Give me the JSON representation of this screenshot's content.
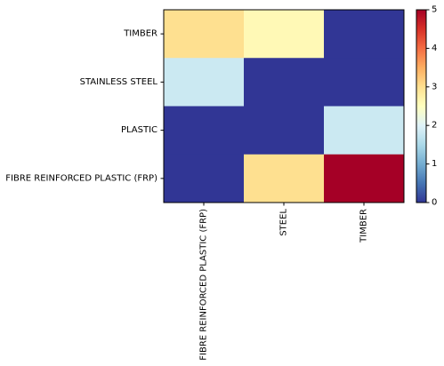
{
  "chart_data": {
    "type": "heatmap",
    "title": "",
    "xlabel": "",
    "ylabel": "",
    "x_categories": [
      "FIBRE REINFORCED PLASTIC (FRP)",
      "STEEL",
      "TIMBER"
    ],
    "y_categories": [
      "TIMBER",
      "STAINLESS STEEL",
      "PLASTIC",
      "FIBRE REINFORCED PLASTIC (FRP)"
    ],
    "values": [
      [
        3,
        2.6,
        0
      ],
      [
        1.8,
        0,
        0
      ],
      [
        0,
        0,
        1.8
      ],
      [
        0,
        3,
        5
      ]
    ],
    "colorbar": {
      "min": 0,
      "max": 5,
      "ticks": [
        0,
        1,
        2,
        3,
        4,
        5
      ]
    },
    "colormap": "RdYlBu_r"
  }
}
